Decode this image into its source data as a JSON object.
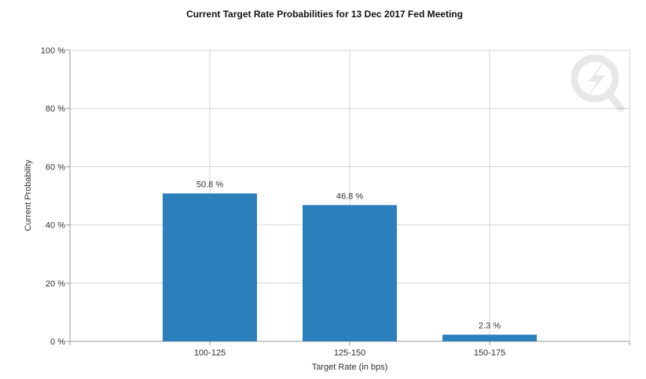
{
  "chart_data": {
    "type": "bar",
    "title": "Current Target Rate Probabilities for 13 Dec 2017 Fed Meeting",
    "xlabel": "Target Rate (in bps)",
    "ylabel": "Current Probability",
    "categories": [
      "100-125",
      "125-150",
      "150-175"
    ],
    "values": [
      50.8,
      46.8,
      2.3
    ],
    "data_labels": [
      "50.8 %",
      "46.8 %",
      "2.3 %"
    ],
    "ylim": [
      0,
      100
    ],
    "yticks": [
      0,
      20,
      40,
      60,
      80,
      100
    ],
    "ytick_labels": [
      "0 %",
      "20 %",
      "40 %",
      "60 %",
      "80 %",
      "100 %"
    ],
    "grid": true,
    "legend": "none",
    "bar_color": "#2b7fbb",
    "watermark": "Q"
  }
}
